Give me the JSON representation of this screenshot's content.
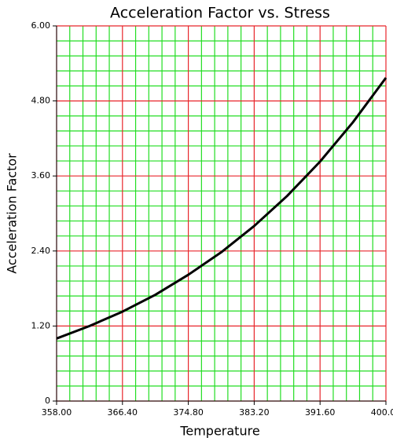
{
  "chart_data": {
    "type": "line",
    "title": "Acceleration Factor vs. Stress",
    "x_label": "Temperature",
    "y_label": "Acceleration Factor",
    "x": [
      358,
      362.2,
      366.4,
      370.6,
      374.8,
      379,
      383.2,
      387.4,
      391.6,
      395.8,
      400
    ],
    "series": [
      {
        "name": "Acceleration Factor",
        "color": "#000000",
        "values": [
          1.0,
          1.2,
          1.43,
          1.7,
          2.02,
          2.38,
          2.8,
          3.28,
          3.83,
          4.46,
          5.17
        ]
      }
    ],
    "xlim": [
      358,
      400
    ],
    "xticks": [
      {
        "value": 358,
        "label": "358.00"
      },
      {
        "value": 366.4,
        "label": "366.40"
      },
      {
        "value": 374.8,
        "label": "374.80"
      },
      {
        "value": 383.2,
        "label": "383.20"
      },
      {
        "value": 391.6,
        "label": "391.60"
      },
      {
        "value": 400,
        "label": "400.00"
      }
    ],
    "ylim": [
      0,
      6
    ],
    "yticks": [
      0,
      {
        "value": 1.2,
        "label": "1.20"
      },
      {
        "value": 2.4,
        "label": "2.40"
      },
      {
        "value": 3.6,
        "label": "3.60"
      },
      {
        "value": 4.8,
        "label": "4.80"
      },
      {
        "value": 6,
        "label": "6.00"
      }
    ],
    "grid": true,
    "grid_color": "#e8262b",
    "minor_grid_color": "#22dd22",
    "minor_grid_divisions": 5
  }
}
